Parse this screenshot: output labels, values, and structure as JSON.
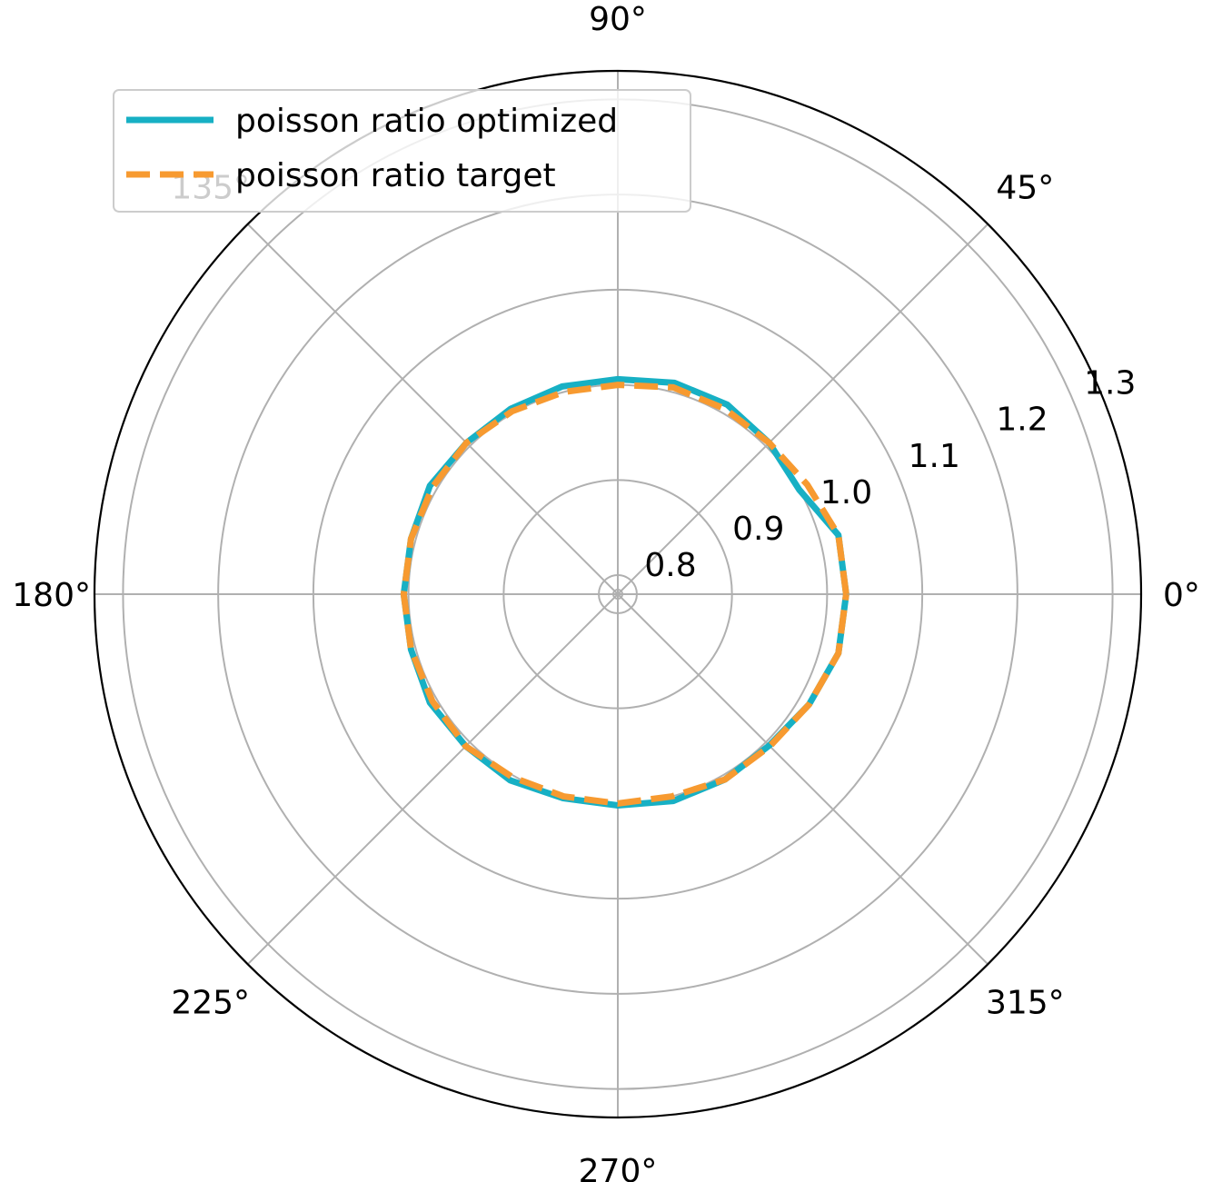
{
  "chart_data": {
    "type": "line",
    "projection": "polar",
    "theta_unit": "degrees",
    "theta_ticks": [
      0,
      45,
      90,
      135,
      180,
      225,
      270,
      315
    ],
    "theta_tick_labels": [
      "0°",
      "45°",
      "90°",
      "135°",
      "180°",
      "225°",
      "270°",
      "315°"
    ],
    "r_ticks": [
      0.8,
      0.9,
      1.0,
      1.1,
      1.2,
      1.3
    ],
    "r_tick_labels": [
      "0.8",
      "0.9",
      "1.0",
      "1.1",
      "1.2",
      "1.3"
    ],
    "rlim": [
      0.78,
      1.33
    ],
    "r_label_angle_deg": 22.5,
    "grid": true,
    "legend": "upper-left",
    "title": "",
    "series": [
      {
        "name": "poisson ratio optimized",
        "color": "#17b0c4",
        "style": "solid",
        "theta": [
          0,
          15,
          30,
          45,
          60,
          75,
          90,
          105,
          120,
          135,
          150,
          165,
          180,
          195,
          210,
          225,
          240,
          255,
          270,
          285,
          300,
          315,
          330,
          345,
          360
        ],
        "r": [
          1.02,
          1.02,
          1.0,
          1.005,
          1.01,
          1.01,
          1.006,
          1.006,
          1.005,
          1.005,
          1.008,
          1.005,
          1.005,
          1.005,
          1.008,
          1.006,
          1.006,
          1.002,
          1.002,
          1.005,
          1.005,
          1.005,
          1.012,
          1.02,
          1.02
        ]
      },
      {
        "name": "poisson ratio target",
        "color": "#f79a30",
        "style": "dashed",
        "theta": [
          0,
          15,
          30,
          45,
          60,
          75,
          90,
          105,
          120,
          135,
          150,
          165,
          180,
          195,
          210,
          225,
          240,
          255,
          270,
          285,
          300,
          315,
          330,
          345,
          360
        ],
        "r": [
          1.02,
          1.02,
          1.01,
          1.005,
          1.005,
          1.005,
          1.0,
          1.0,
          1.002,
          1.005,
          1.005,
          1.005,
          1.005,
          1.005,
          1.005,
          1.006,
          1.002,
          1.0,
          1.0,
          1.0,
          1.005,
          1.006,
          1.012,
          1.02,
          1.02
        ]
      }
    ]
  }
}
